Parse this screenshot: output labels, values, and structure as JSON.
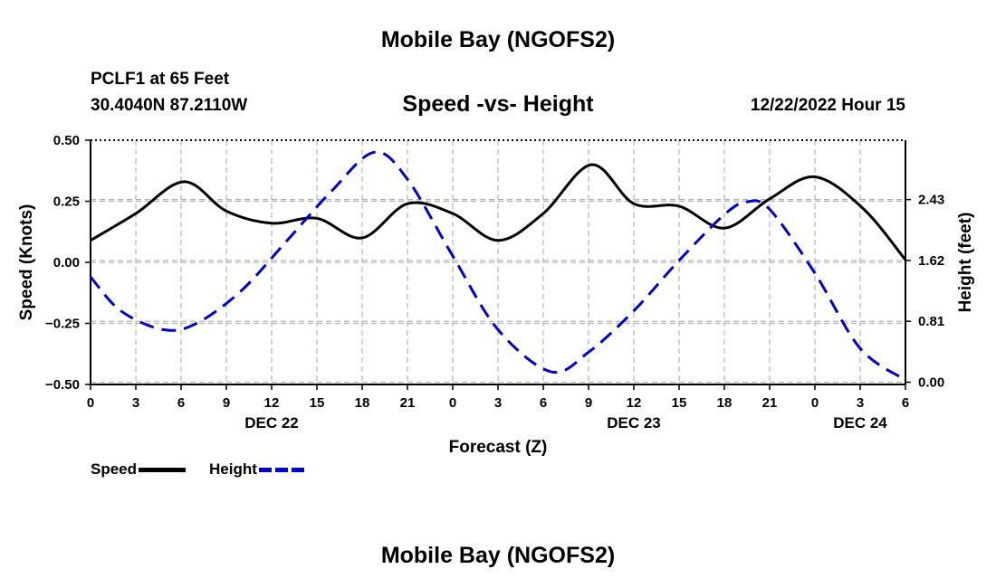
{
  "header": {
    "title": "Mobile Bay (NGOFS2)",
    "station": "PCLF1 at 65 Feet",
    "coords": "30.4040N  87.2110W",
    "subtitle": "Speed -vs- Height",
    "datetime": "12/22/2022 Hour 15"
  },
  "footer": {
    "title": "Mobile Bay (NGOFS2)"
  },
  "legend": {
    "speed_label": "Speed",
    "height_label": "Height",
    "speed_color": "#000000",
    "height_color": "#0000cc"
  },
  "chart_data": {
    "type": "line",
    "title": "Speed -vs- Height",
    "xlabel": "Forecast (Z)",
    "ylabel": "Speed (Knots)",
    "y2label": "Height (feet)",
    "xlim": [
      0,
      54
    ],
    "ylim": [
      -0.5,
      0.5
    ],
    "y2lim": [
      -0.03,
      3.22
    ],
    "x_ticks": [
      0,
      3,
      6,
      9,
      12,
      15,
      18,
      21,
      24,
      27,
      30,
      33,
      36,
      39,
      42,
      45,
      48,
      51,
      54
    ],
    "x_tick_labels": [
      "0",
      "3",
      "6",
      "9",
      "12",
      "15",
      "18",
      "21",
      "0",
      "3",
      "6",
      "9",
      "12",
      "15",
      "18",
      "21",
      "0",
      "3",
      "6"
    ],
    "date_labels": [
      {
        "x": 12,
        "label": "DEC 22"
      },
      {
        "x": 36,
        "label": "DEC 23"
      },
      {
        "x": 51,
        "label": "DEC 24"
      }
    ],
    "y_ticks": [
      -0.5,
      -0.25,
      0.0,
      0.25,
      0.5
    ],
    "y_tick_labels": [
      "−0.50",
      "−0.25",
      "0.00",
      "0.25",
      "0.50"
    ],
    "y2_ticks": [
      0.0,
      0.81,
      1.62,
      2.43
    ],
    "y2_tick_labels": [
      "0.00",
      "0.81",
      "1.62",
      "2.43"
    ],
    "grid": true,
    "series": [
      {
        "name": "Speed",
        "axis": "left",
        "color": "#000000",
        "dash": "solid",
        "x": [
          0,
          3,
          6.2,
          9,
          12,
          15,
          18,
          21,
          24,
          27,
          30,
          33.2,
          36,
          39,
          42,
          45,
          48,
          51.2,
          54
        ],
        "values": [
          0.09,
          0.2,
          0.33,
          0.21,
          0.16,
          0.18,
          0.1,
          0.24,
          0.2,
          0.09,
          0.2,
          0.4,
          0.24,
          0.23,
          0.14,
          0.26,
          0.35,
          0.22,
          0.01
        ]
      },
      {
        "name": "Height",
        "axis": "right",
        "color": "#0000cc",
        "dash": "dashed",
        "x": [
          0,
          2,
          4.8,
          7,
          10,
          13,
          16,
          18.8,
          21,
          24,
          27,
          30.5,
          33,
          36,
          39,
          42,
          43.5,
          45,
          48,
          51,
          54
        ],
        "values": [
          1.4,
          0.95,
          0.7,
          0.78,
          1.22,
          1.88,
          2.55,
          3.06,
          2.7,
          1.68,
          0.7,
          0.14,
          0.4,
          0.95,
          1.62,
          2.23,
          2.4,
          2.3,
          1.45,
          0.45,
          0.03
        ]
      }
    ]
  }
}
